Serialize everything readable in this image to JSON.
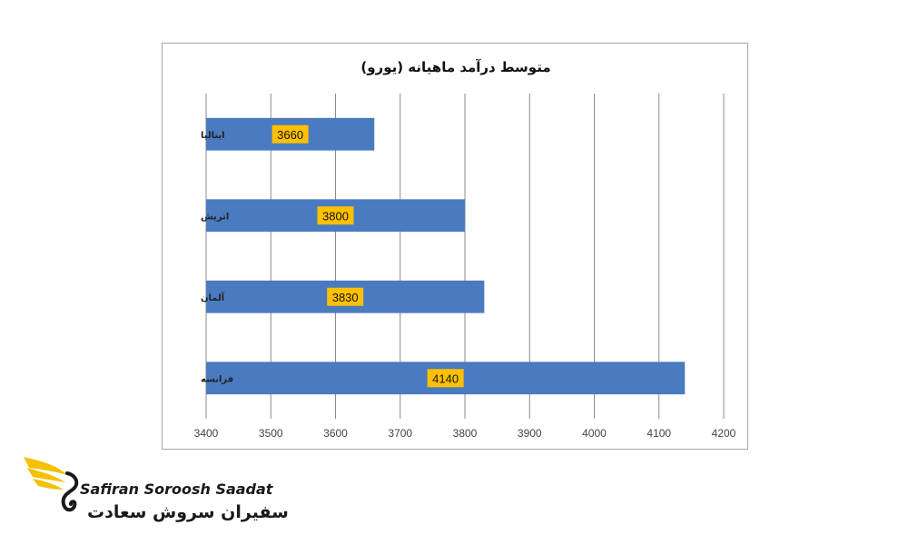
{
  "chart_data": {
    "type": "bar",
    "orientation": "horizontal",
    "title": "متوسط درآمد ماهیانه (یورو)",
    "categories": [
      "ایتالیا",
      "اتریش",
      "آلمان",
      "فرانسه"
    ],
    "values": [
      3660,
      3800,
      3830,
      4140
    ],
    "data_labels": [
      "3660",
      "3800",
      "3830",
      "4140"
    ],
    "xlim": [
      3400,
      4200
    ],
    "xticks": [
      "3400",
      "3500",
      "3600",
      "3700",
      "3800",
      "3900",
      "4000",
      "4100",
      "4200"
    ],
    "grid": "vertical",
    "legend": "none",
    "bar_color": "#4a7bc0",
    "label_bg": "#ffc000"
  },
  "branding": {
    "name_en": "Safiran Soroosh Saadat",
    "name_fa": "سفیران سروش سعادت",
    "accent": "#f5c000"
  }
}
